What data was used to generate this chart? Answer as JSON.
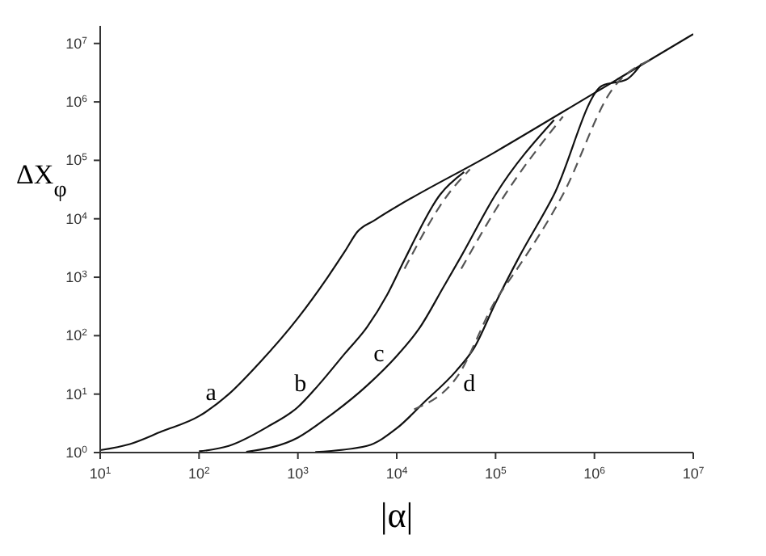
{
  "chart_data": {
    "type": "line",
    "xlabel": "|α|",
    "ylabel": "ΔX$_{φ}$",
    "log": "xy",
    "marker": "none",
    "xlim": [
      10,
      10000000
    ],
    "ylim": [
      1,
      20000000
    ],
    "xticks": [
      {
        "value": 10,
        "label": "10$^{1}$"
      },
      {
        "value": 100,
        "label": "10$^{2}$"
      },
      {
        "value": 1000,
        "label": "10$^{3}$"
      },
      {
        "value": 10000,
        "label": "10$^{4}$"
      },
      {
        "value": 100000,
        "label": "10$^{5}$"
      },
      {
        "value": 1000000,
        "label": "10$^{6}$"
      },
      {
        "value": 10000000,
        "label": "10$^{7}$"
      }
    ],
    "yticks": [
      {
        "value": 1,
        "label": "10$^{0}$"
      },
      {
        "value": 10,
        "label": "10$^{1}$"
      },
      {
        "value": 100,
        "label": "10$^{2}$"
      },
      {
        "value": 1000,
        "label": "10$^{3}$"
      },
      {
        "value": 10000,
        "label": "10$^{4}$"
      },
      {
        "value": 100000,
        "label": "10$^{5}$"
      },
      {
        "value": 1000000,
        "label": "10$^{6}$"
      },
      {
        "value": 10000000,
        "label": "10$^{7}$"
      }
    ],
    "series": [
      {
        "color": "#111111",
        "line_style": "solid",
        "x": [
          10,
          20,
          42,
          100,
          200,
          400,
          1000,
          2000,
          3000,
          4000,
          6000,
          100000,
          1000000,
          10000000
        ],
        "values": [
          1.1,
          1.4,
          2.3,
          4.2,
          10,
          33,
          200,
          1000,
          2800,
          6000,
          9500,
          140000,
          1420000,
          14500000
        ]
      },
      {
        "color": "#111111",
        "line_style": "solid",
        "x": [
          100,
          200,
          500,
          1000,
          1600,
          3000,
          5000,
          8000,
          12000,
          27500,
          48000
        ],
        "values": [
          1.05,
          1.3,
          2.8,
          6,
          14,
          50,
          140,
          500,
          2000,
          26000,
          63000
        ]
      },
      {
        "color": "#111111",
        "line_style": "solid",
        "x": [
          300,
          1000,
          2000,
          5000,
          10000,
          17000,
          30000,
          45000,
          100000,
          390000
        ],
        "values": [
          1.03,
          1.8,
          4,
          14,
          45,
          135,
          700,
          2300,
          26000,
          490000
        ]
      },
      {
        "color": "#111111",
        "line_style": "solid",
        "x": [
          1500,
          5000,
          10000,
          19000,
          40000,
          60000,
          100000,
          175000,
          390000,
          1200000,
          2100000,
          3000000
        ],
        "values": [
          1.02,
          1.3,
          2.6,
          7.3,
          25,
          60,
          365,
          2300,
          26000,
          1900000,
          2400000,
          4500000
        ]
      },
      {
        "color": "#555555",
        "line_style": "dashed",
        "x": [
          12000,
          33000,
          55000
        ],
        "values": [
          1400,
          26000,
          70000
        ]
      },
      {
        "color": "#555555",
        "line_style": "dashed",
        "x": [
          45000,
          125000,
          480000
        ],
        "values": [
          1400,
          26000,
          560000
        ]
      },
      {
        "color": "#555555",
        "line_style": "dashed",
        "x": [
          15000,
          41000,
          100000,
          166000,
          480000,
          1500000,
          4000000
        ],
        "values": [
          5.5,
          20,
          400,
          1400,
          26000,
          1600000,
          5500000
        ]
      }
    ],
    "annotations": [
      "a",
      "b",
      "c",
      "d"
    ]
  }
}
